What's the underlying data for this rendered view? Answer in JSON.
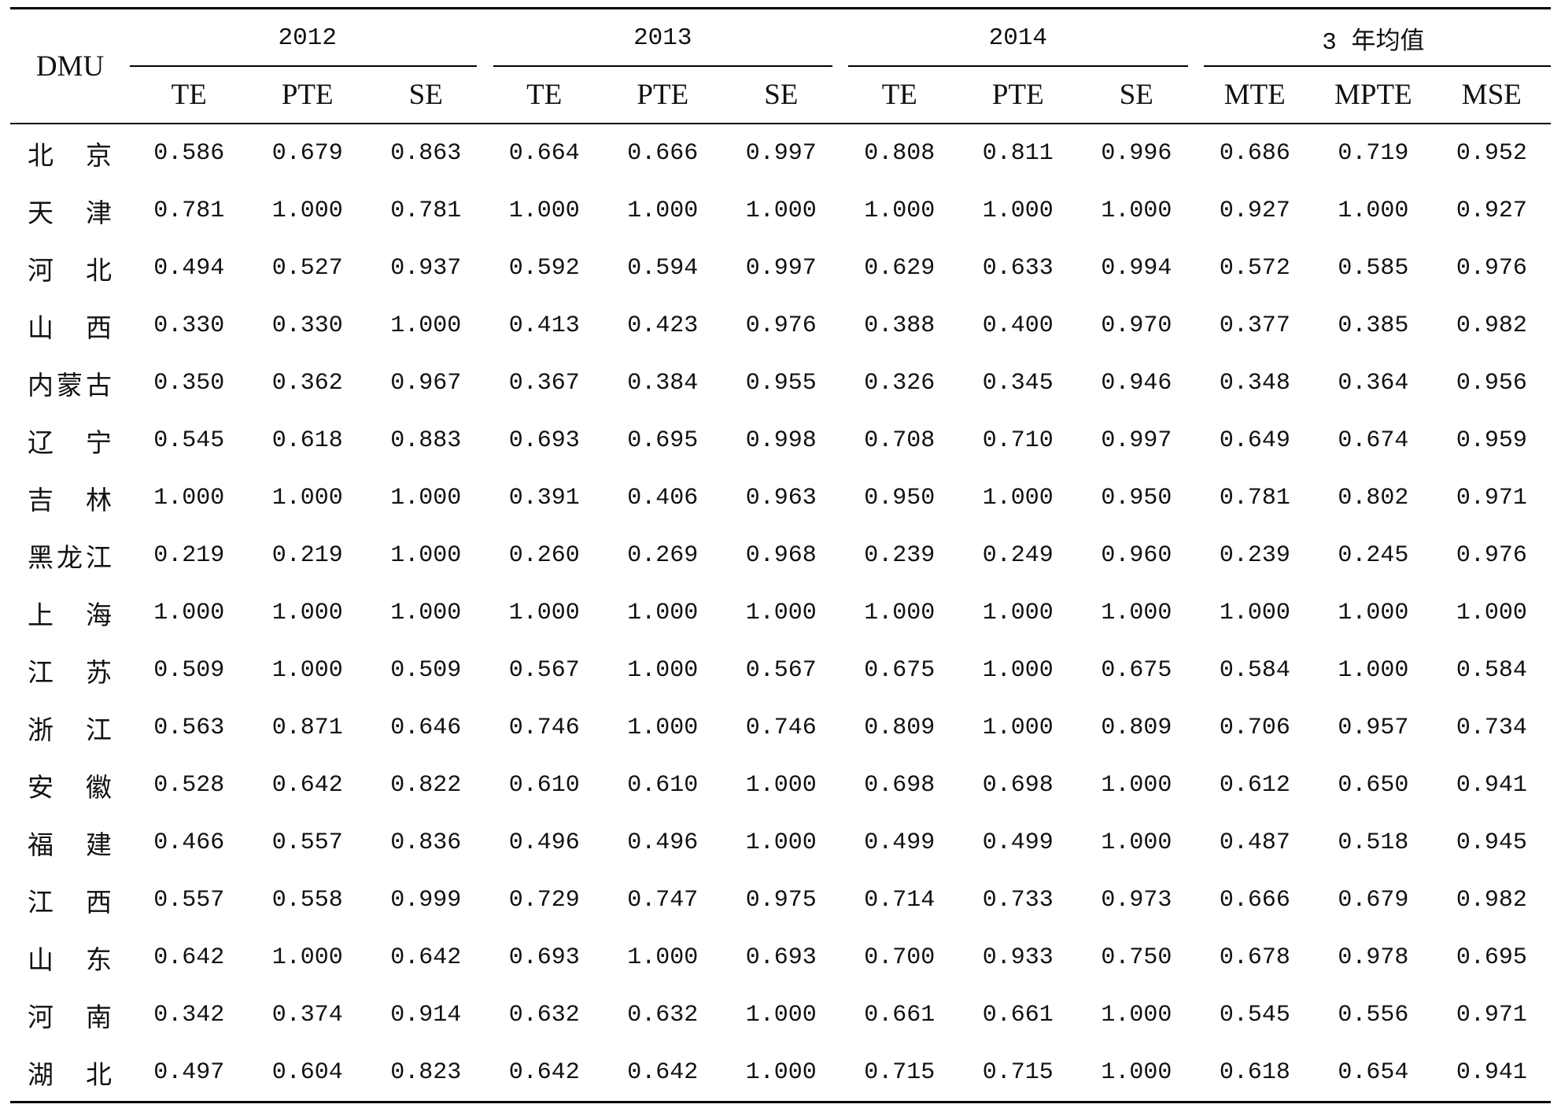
{
  "colors": {
    "text": "#111111",
    "rules": "#000000",
    "background": "#ffffff"
  },
  "table": {
    "stub_header": "DMU",
    "groups": [
      {
        "label": "2012",
        "columns": [
          "TE",
          "PTE",
          "SE"
        ]
      },
      {
        "label": "2013",
        "columns": [
          "TE",
          "PTE",
          "SE"
        ]
      },
      {
        "label": "2014",
        "columns": [
          "TE",
          "PTE",
          "SE"
        ]
      },
      {
        "label": "3 年均值",
        "columns": [
          "MTE",
          "MPTE",
          "MSE"
        ]
      }
    ],
    "rows": [
      {
        "dmu": "北京",
        "values": [
          "0.586",
          "0.679",
          "0.863",
          "0.664",
          "0.666",
          "0.997",
          "0.808",
          "0.811",
          "0.996",
          "0.686",
          "0.719",
          "0.952"
        ]
      },
      {
        "dmu": "天津",
        "values": [
          "0.781",
          "1.000",
          "0.781",
          "1.000",
          "1.000",
          "1.000",
          "1.000",
          "1.000",
          "1.000",
          "0.927",
          "1.000",
          "0.927"
        ]
      },
      {
        "dmu": "河北",
        "values": [
          "0.494",
          "0.527",
          "0.937",
          "0.592",
          "0.594",
          "0.997",
          "0.629",
          "0.633",
          "0.994",
          "0.572",
          "0.585",
          "0.976"
        ]
      },
      {
        "dmu": "山西",
        "values": [
          "0.330",
          "0.330",
          "1.000",
          "0.413",
          "0.423",
          "0.976",
          "0.388",
          "0.400",
          "0.970",
          "0.377",
          "0.385",
          "0.982"
        ]
      },
      {
        "dmu": "内蒙古",
        "values": [
          "0.350",
          "0.362",
          "0.967",
          "0.367",
          "0.384",
          "0.955",
          "0.326",
          "0.345",
          "0.946",
          "0.348",
          "0.364",
          "0.956"
        ]
      },
      {
        "dmu": "辽宁",
        "values": [
          "0.545",
          "0.618",
          "0.883",
          "0.693",
          "0.695",
          "0.998",
          "0.708",
          "0.710",
          "0.997",
          "0.649",
          "0.674",
          "0.959"
        ]
      },
      {
        "dmu": "吉林",
        "values": [
          "1.000",
          "1.000",
          "1.000",
          "0.391",
          "0.406",
          "0.963",
          "0.950",
          "1.000",
          "0.950",
          "0.781",
          "0.802",
          "0.971"
        ]
      },
      {
        "dmu": "黑龙江",
        "values": [
          "0.219",
          "0.219",
          "1.000",
          "0.260",
          "0.269",
          "0.968",
          "0.239",
          "0.249",
          "0.960",
          "0.239",
          "0.245",
          "0.976"
        ]
      },
      {
        "dmu": "上海",
        "values": [
          "1.000",
          "1.000",
          "1.000",
          "1.000",
          "1.000",
          "1.000",
          "1.000",
          "1.000",
          "1.000",
          "1.000",
          "1.000",
          "1.000"
        ]
      },
      {
        "dmu": "江苏",
        "values": [
          "0.509",
          "1.000",
          "0.509",
          "0.567",
          "1.000",
          "0.567",
          "0.675",
          "1.000",
          "0.675",
          "0.584",
          "1.000",
          "0.584"
        ]
      },
      {
        "dmu": "浙江",
        "values": [
          "0.563",
          "0.871",
          "0.646",
          "0.746",
          "1.000",
          "0.746",
          "0.809",
          "1.000",
          "0.809",
          "0.706",
          "0.957",
          "0.734"
        ]
      },
      {
        "dmu": "安徽",
        "values": [
          "0.528",
          "0.642",
          "0.822",
          "0.610",
          "0.610",
          "1.000",
          "0.698",
          "0.698",
          "1.000",
          "0.612",
          "0.650",
          "0.941"
        ]
      },
      {
        "dmu": "福建",
        "values": [
          "0.466",
          "0.557",
          "0.836",
          "0.496",
          "0.496",
          "1.000",
          "0.499",
          "0.499",
          "1.000",
          "0.487",
          "0.518",
          "0.945"
        ]
      },
      {
        "dmu": "江西",
        "values": [
          "0.557",
          "0.558",
          "0.999",
          "0.729",
          "0.747",
          "0.975",
          "0.714",
          "0.733",
          "0.973",
          "0.666",
          "0.679",
          "0.982"
        ]
      },
      {
        "dmu": "山东",
        "values": [
          "0.642",
          "1.000",
          "0.642",
          "0.693",
          "1.000",
          "0.693",
          "0.700",
          "0.933",
          "0.750",
          "0.678",
          "0.978",
          "0.695"
        ]
      },
      {
        "dmu": "河南",
        "values": [
          "0.342",
          "0.374",
          "0.914",
          "0.632",
          "0.632",
          "1.000",
          "0.661",
          "0.661",
          "1.000",
          "0.545",
          "0.556",
          "0.971"
        ]
      },
      {
        "dmu": "湖北",
        "values": [
          "0.497",
          "0.604",
          "0.823",
          "0.642",
          "0.642",
          "1.000",
          "0.715",
          "0.715",
          "1.000",
          "0.618",
          "0.654",
          "0.941"
        ]
      }
    ]
  }
}
